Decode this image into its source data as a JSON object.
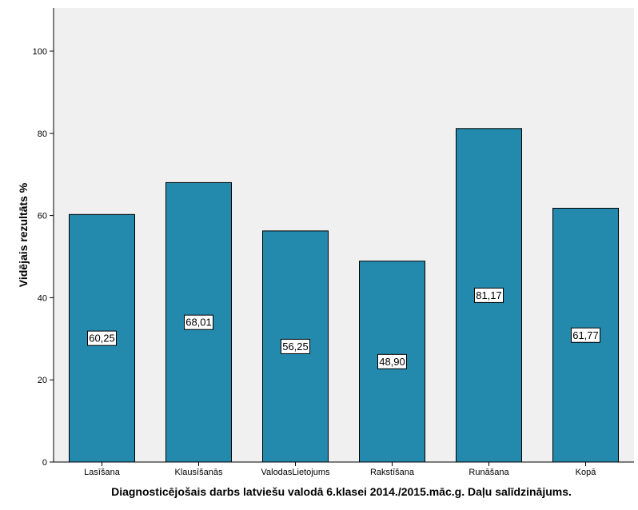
{
  "chart_data": {
    "type": "bar",
    "categories": [
      "Lasīšana",
      "Klausīšanās",
      "ValodasLietojums",
      "Rakstīšana",
      "Runāšana",
      "Kopā"
    ],
    "values": [
      60.25,
      68.01,
      56.25,
      48.9,
      81.17,
      61.77
    ],
    "data_labels": [
      "60,25",
      "68,01",
      "56,25",
      "48,90",
      "81,17",
      "61,77"
    ],
    "xlabel": "Diagnosticējošais darbs latviešu valodā 6.klasei 2014./2015.māc.g. Daļu salīdzinājums.",
    "ylabel": "Vidējais rezultāts %",
    "ylim": [
      0,
      110
    ],
    "yticks": [
      0,
      20,
      40,
      60,
      80,
      100
    ],
    "ytick_labels": [
      "0",
      "20",
      "40",
      "60",
      "80",
      "100"
    ],
    "grid": false,
    "legend": "none",
    "colors": {
      "bar": "#2389ad",
      "bar_outline": "#000000",
      "plot_background": "#f0f0f0"
    }
  }
}
